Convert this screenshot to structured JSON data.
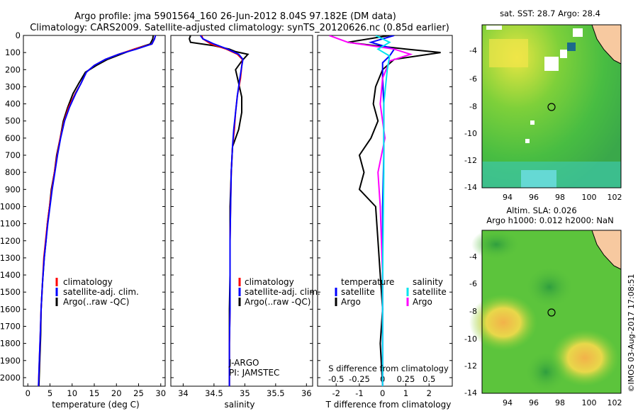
{
  "header": {
    "line1": "Argo profile: jma 5901564_160 26-Jun-2012 8.04S 97.182E (DM data)",
    "line2": "Climatology: CARS2009. Satellite-adjusted climatology: synTS_20120626.nc (0.85d earlier)"
  },
  "colors": {
    "clim": "#ff0000",
    "sat": "#0000ff",
    "argo": "#000000",
    "sat_s": "#00e5ee",
    "argo_s": "#ff00ff"
  },
  "chart_data": [
    {
      "type": "line",
      "id": "temperature",
      "xlabel": "temperature (deg C)",
      "ylabel": "",
      "xlim": [
        -1,
        31
      ],
      "ylim": [
        2050,
        0
      ],
      "xticks": [
        0,
        5,
        10,
        15,
        20,
        25,
        30
      ],
      "yticks": [
        0,
        100,
        200,
        300,
        400,
        500,
        600,
        700,
        800,
        900,
        1000,
        1100,
        1200,
        1300,
        1400,
        1500,
        1600,
        1700,
        1800,
        1900,
        2000
      ],
      "legend": [
        "climatology",
        "satellite-adj. clim.",
        "Argo(..raw -QC)"
      ],
      "series": [
        {
          "name": "Argo(..raw -QC)",
          "color": "argo",
          "x": [
            28.3,
            28.2,
            27.6,
            24,
            21,
            18,
            15.5,
            13,
            11.5,
            10.2,
            9,
            8,
            7.3,
            6.5,
            6,
            5.3,
            4.9,
            4.4,
            4.1,
            3.7,
            3.3,
            3,
            2.9,
            2.7,
            2.5
          ],
          "y": [
            0,
            20,
            50,
            80,
            110,
            140,
            175,
            215,
            280,
            340,
            420,
            500,
            600,
            700,
            800,
            900,
            1000,
            1100,
            1200,
            1300,
            1450,
            1600,
            1750,
            1900,
            2050
          ]
        },
        {
          "name": "climatology",
          "color": "clim",
          "x": [
            28.8,
            28.6,
            28,
            24,
            20.5,
            17.5,
            15,
            13.2,
            12,
            10.7,
            9.2,
            8.2,
            7.3,
            6.6,
            6,
            5.4,
            4.9,
            4.4,
            4,
            3.6,
            3.3,
            3,
            2.8,
            2.6,
            2.4
          ],
          "y": [
            0,
            20,
            50,
            80,
            110,
            140,
            175,
            215,
            280,
            340,
            420,
            500,
            600,
            700,
            800,
            900,
            1000,
            1100,
            1200,
            1300,
            1450,
            1600,
            1750,
            1900,
            2050
          ]
        },
        {
          "name": "satellite-adj. clim.",
          "color": "sat",
          "x": [
            28.8,
            28.6,
            28,
            24.5,
            20.5,
            17.5,
            15,
            13.2,
            12,
            10.8,
            9.4,
            8.3,
            7.4,
            6.7,
            6.1,
            5.5,
            5,
            4.5,
            4.1,
            3.7,
            3.3,
            3,
            2.8,
            2.6,
            2.4
          ],
          "y": [
            0,
            20,
            50,
            80,
            110,
            140,
            175,
            215,
            280,
            340,
            420,
            500,
            600,
            700,
            800,
            900,
            1000,
            1100,
            1200,
            1300,
            1450,
            1600,
            1750,
            1900,
            2050
          ]
        }
      ]
    },
    {
      "type": "line",
      "id": "salinity",
      "xlabel": "salinity",
      "ylabel": "",
      "xlim": [
        33.8,
        36.1
      ],
      "ylim": [
        2050,
        0
      ],
      "xticks": [
        34,
        34.5,
        35,
        35.5,
        36
      ],
      "legend": [
        "climatology",
        "satellite-adj. clim.",
        "Argo(..raw -QC)"
      ],
      "annotations": [
        "J-ARGO",
        "PI: JAMSTEC"
      ],
      "series": [
        {
          "name": "Argo(..raw -QC)",
          "color": "argo",
          "x": [
            34.12,
            34.1,
            34.12,
            34.5,
            34.75,
            34.85,
            35.05,
            34.95,
            34.85,
            34.9,
            34.95,
            34.95,
            34.9,
            34.8,
            34.78,
            34.76,
            34.76,
            34.76,
            34.75,
            34.75,
            34.75,
            34.75
          ],
          "y": [
            0,
            20,
            40,
            60,
            80,
            95,
            110,
            150,
            200,
            280,
            360,
            450,
            550,
            650,
            800,
            1000,
            1200,
            1400,
            1600,
            1800,
            1950,
            2050
          ]
        },
        {
          "name": "climatology",
          "color": "clim",
          "x": [
            34.3,
            34.32,
            34.45,
            34.7,
            34.88,
            34.96,
            34.95,
            34.93,
            34.88,
            34.85,
            34.83,
            34.8,
            34.78,
            34.77,
            34.76,
            34.76,
            34.76,
            34.75,
            34.75,
            34.75
          ],
          "y": [
            0,
            20,
            50,
            80,
            110,
            140,
            180,
            250,
            350,
            450,
            550,
            650,
            800,
            1000,
            1200,
            1400,
            1600,
            1800,
            1950,
            2050
          ]
        },
        {
          "name": "satellite-adj. clim.",
          "color": "sat",
          "x": [
            34.28,
            34.32,
            34.5,
            34.72,
            34.9,
            34.97,
            34.95,
            34.92,
            34.88,
            34.85,
            34.82,
            34.8,
            34.78,
            34.77,
            34.76,
            34.76,
            34.76,
            34.75,
            34.75,
            34.75
          ],
          "y": [
            0,
            20,
            50,
            80,
            110,
            140,
            180,
            250,
            350,
            450,
            550,
            650,
            800,
            1000,
            1200,
            1400,
            1600,
            1800,
            1950,
            2050
          ]
        }
      ]
    },
    {
      "type": "line",
      "id": "difference",
      "xlabel": "T difference from climatology",
      "ylabel": "",
      "xlabel_top": "S difference from climatology",
      "xlim": [
        -2.8,
        3
      ],
      "ylim": [
        2050,
        0
      ],
      "xticks": [
        -2,
        -1,
        0,
        1,
        2
      ],
      "xticks_s": [
        -0.5,
        -0.25,
        0,
        0.25,
        0.5
      ],
      "legend_title_left": "temperature",
      "legend_title_right": "salinity",
      "legend": [
        "satellite",
        "Argo",
        "satellite",
        "Argo"
      ],
      "series": [
        {
          "name": "T Argo",
          "color": "argo",
          "x": [
            0.3,
            -1.5,
            -0.3,
            1,
            2.5,
            0.5,
            0,
            -0.3,
            -0.4,
            -0.2,
            -0.5,
            -1,
            -0.8,
            -1,
            -0.3,
            -0.2,
            -0.1,
            0,
            -0.1,
            0
          ],
          "y": [
            0,
            40,
            60,
            80,
            100,
            140,
            200,
            300,
            400,
            500,
            600,
            700,
            800,
            900,
            1000,
            1200,
            1400,
            1600,
            1800,
            2050
          ]
        },
        {
          "name": "T satellite",
          "color": "sat",
          "x": [
            0.5,
            -0.5,
            0.5,
            0.3,
            0,
            0,
            0.05,
            0.05,
            0,
            0,
            0,
            0
          ],
          "y": [
            0,
            40,
            80,
            120,
            160,
            250,
            400,
            700,
            1000,
            1400,
            1800,
            2050
          ]
        },
        {
          "name": "S Argo",
          "color": "argo_s",
          "x": [
            -2.3,
            -1.5,
            0.5,
            1.2,
            0.3,
            0,
            -0.1,
            0.1,
            -0.2,
            -0.1,
            0,
            0
          ],
          "y": [
            0,
            40,
            80,
            110,
            150,
            250,
            400,
            600,
            800,
            1000,
            1400,
            2050
          ]
        },
        {
          "name": "S satellite",
          "color": "sat_s",
          "x": [
            -0.3,
            0.3,
            -0.2,
            0.3,
            0.2,
            0.05,
            0.05,
            0,
            0
          ],
          "y": [
            0,
            40,
            80,
            120,
            200,
            400,
            800,
            1400,
            2050
          ]
        }
      ]
    }
  ],
  "maps": {
    "sst": {
      "title": "sat. SST: 28.7 Argo: 28.4",
      "xticks": [
        "94",
        "96",
        "98",
        "100",
        "102"
      ],
      "yticks": [
        "-4",
        "-6",
        "-8",
        "-10",
        "-12",
        "-14"
      ]
    },
    "sla": {
      "title1": "Altim. SLA: 0.026",
      "title2": "Argo h1000: 0.012 h2000: NaN",
      "xticks": [
        "94",
        "96",
        "98",
        "100",
        "102"
      ],
      "yticks": [
        "-4",
        "-6",
        "-8",
        "-10",
        "-12",
        "-14"
      ]
    }
  },
  "footer": {
    "credit": "©IMOS 03-Aug-2017 17:08:51"
  }
}
